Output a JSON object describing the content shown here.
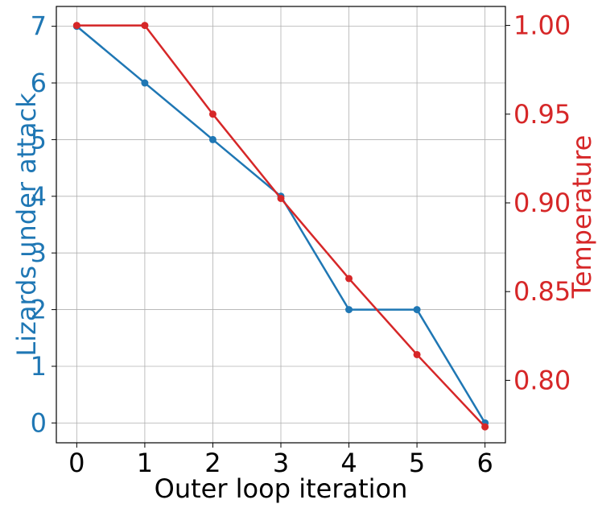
{
  "chart_data": {
    "type": "line",
    "title": "",
    "xlabel": "Outer loop iteration",
    "ylabel_left": "Lizards under attack",
    "ylabel_right": "Temperature",
    "x": [
      0,
      1,
      2,
      3,
      4,
      5,
      6
    ],
    "x_ticks": [
      "0",
      "1",
      "2",
      "3",
      "4",
      "5",
      "6"
    ],
    "y_left_ticks": [
      "0",
      "1",
      "2",
      "3",
      "4",
      "5",
      "6",
      "7"
    ],
    "y_right_ticks": [
      "0.80",
      "0.85",
      "0.90",
      "0.95",
      "1.00"
    ],
    "xlim": [
      -0.3,
      6.3
    ],
    "ylim_left": [
      -0.35,
      7.35
    ],
    "ylim_right": [
      0.7648,
      1.0107
    ],
    "grid": true,
    "series": [
      {
        "axis": "left",
        "color": "#1f77b4",
        "values": [
          7,
          6,
          5,
          4,
          2,
          2,
          0
        ]
      },
      {
        "axis": "right",
        "color": "#d62728",
        "values": [
          1.0,
          1.0,
          0.95,
          0.9025,
          0.857375,
          0.81450625,
          0.7737809375
        ]
      }
    ]
  }
}
